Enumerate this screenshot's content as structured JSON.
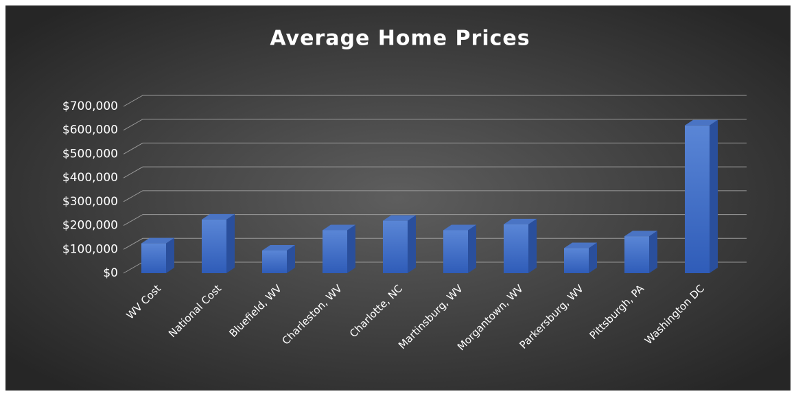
{
  "chart_data": {
    "type": "bar3d",
    "title": "Average Home Prices",
    "categories": [
      "WV Cost",
      "National Cost",
      "Bluefield, WV",
      "Charleston, WV",
      "Charlotte, NC",
      "Martinsburg, WV",
      "Morgantown, WV",
      "Parkersburg, WV",
      "Pittsburgh, PA",
      "Washington DC"
    ],
    "values": [
      125000,
      225000,
      95000,
      180000,
      220000,
      180000,
      205000,
      105000,
      155000,
      620000
    ],
    "color": "#4472c4",
    "ylim": [
      0,
      700000
    ],
    "yticks": [
      {
        "value": 0,
        "label": "$0"
      },
      {
        "value": 100000,
        "label": "$100,000"
      },
      {
        "value": 200000,
        "label": "$200,000"
      },
      {
        "value": 300000,
        "label": "$300,000"
      },
      {
        "value": 400000,
        "label": "$400,000"
      },
      {
        "value": 500000,
        "label": "$500,000"
      },
      {
        "value": 600000,
        "label": "$600,000"
      },
      {
        "value": 700000,
        "label": "$700,000"
      }
    ],
    "grid": true
  }
}
